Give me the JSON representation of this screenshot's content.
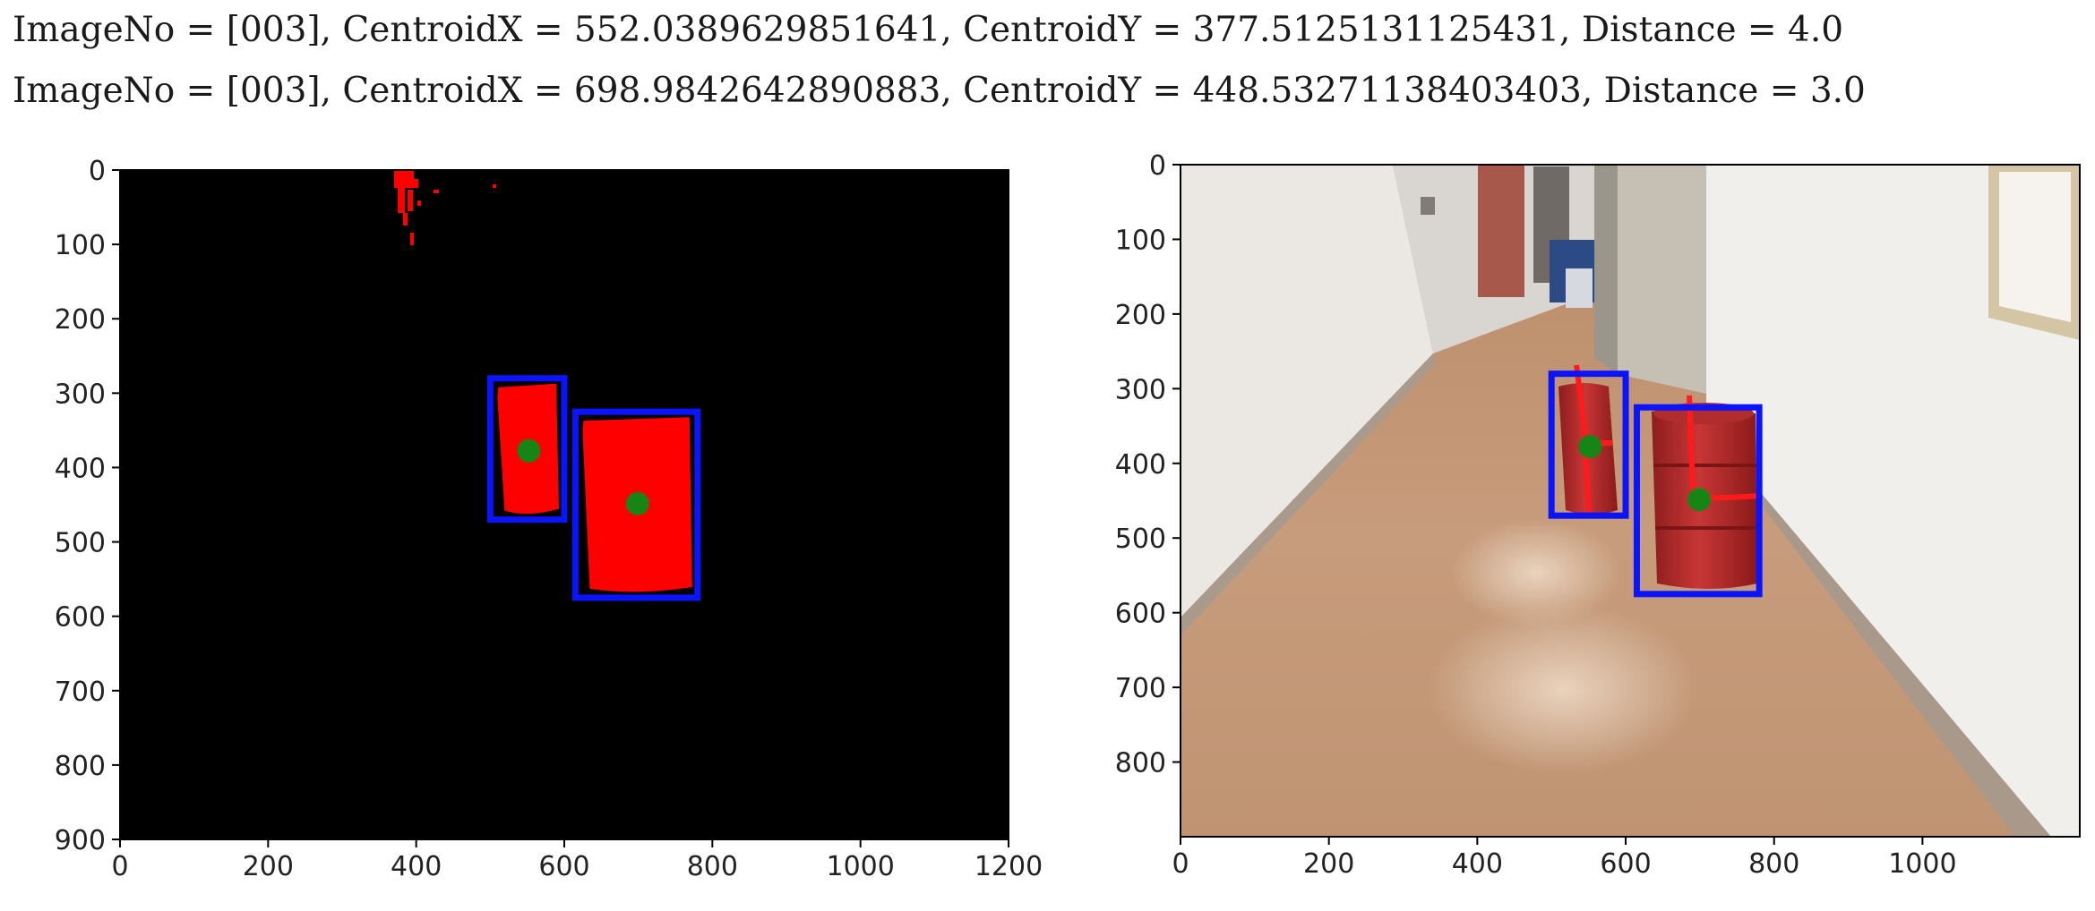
{
  "header": {
    "line1": "ImageNo = [003], CentroidX = 552.0389629851641, CentroidY = 377.5125131125431, Distance = 4.0",
    "line2": "ImageNo = [003], CentroidX = 698.9842642890883, CentroidY = 448.53271138403403, Distance = 3.0"
  },
  "detections": [
    {
      "centroid_x": 552.0389629851641,
      "centroid_y": 377.5125131125431,
      "distance": 4.0,
      "box": {
        "x0": 500,
        "y0": 280,
        "x1": 600,
        "y1": 470
      }
    },
    {
      "centroid_x": 698.9842642890883,
      "centroid_y": 448.53271138403403,
      "distance": 3.0,
      "box": {
        "x0": 615,
        "y0": 325,
        "x1": 780,
        "y1": 575
      }
    }
  ],
  "colors": {
    "box": "#0a14ff",
    "centroid": "#168516",
    "mask": "#ff0000",
    "background": "#000000"
  },
  "plots": [
    {
      "name": "mask-plot",
      "xlim": [
        0,
        1200
      ],
      "ylim": [
        900,
        0
      ],
      "xticks": [
        "0",
        "200",
        "400",
        "600",
        "800",
        "1000",
        "1200"
      ],
      "yticks": [
        "0",
        "100",
        "200",
        "300",
        "400",
        "500",
        "600",
        "700",
        "800",
        "900"
      ]
    },
    {
      "name": "photo-plot",
      "xlim": [
        0,
        1212
      ],
      "ylim": [
        900,
        0
      ],
      "xticks": [
        "0",
        "200",
        "400",
        "600",
        "800",
        "1000"
      ],
      "yticks": [
        "0",
        "100",
        "200",
        "300",
        "400",
        "500",
        "600",
        "700",
        "800"
      ]
    }
  ]
}
